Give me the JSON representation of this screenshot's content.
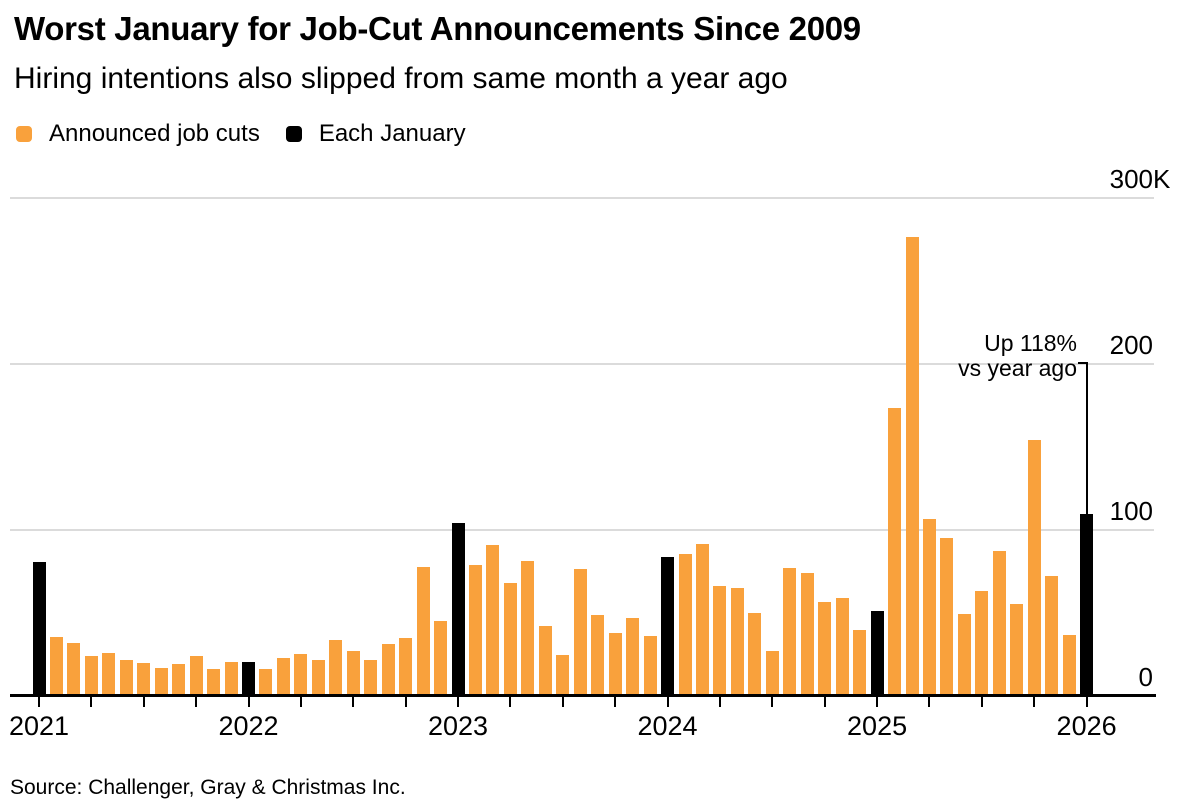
{
  "header": {
    "title": "Worst January for Job-Cut Announcements Since 2009",
    "subtitle": "Hiring intentions also slipped from same month a year ago"
  },
  "annotation": {
    "line1": "Up 118%",
    "line2": "vs year ago",
    "target_index": 60
  },
  "source": {
    "text": "Source: Challenger, Gray & Christmas Inc."
  },
  "colors": {
    "background": "#FFFFFF",
    "gridline": "#DBDBDB",
    "axis": "#000000",
    "text": "#000000"
  },
  "chart_data": {
    "type": "bar",
    "title": "Worst January for Job-Cut Announcements Since 2009",
    "subtitle": "Hiring intentions also slipped from same month a year ago",
    "unit": "thousands of announced job cuts",
    "frequency": "monthly",
    "start_month": "2021-01",
    "ylim": [
      0,
      300
    ],
    "grid": "horizontal",
    "legend_position": "top-left",
    "series": [
      {
        "name": "Announced job cuts",
        "color": "#F9A13C"
      },
      {
        "name": "Each January",
        "color": "#000000"
      }
    ],
    "y_ticks": [
      {
        "value": 0,
        "label": "0"
      },
      {
        "value": 100,
        "label": "100"
      },
      {
        "value": 200,
        "label": "200"
      },
      {
        "value": 300,
        "label": "300",
        "suffix": "K"
      }
    ],
    "x_years": [
      "2021",
      "2022",
      "2023",
      "2024",
      "2025",
      "2026"
    ],
    "x_minor_ticks": "quarterly",
    "january_indices": [
      0,
      12,
      24,
      36,
      48,
      60
    ],
    "values": [
      79.6,
      34.5,
      30.6,
      22.9,
      24.6,
      20.5,
      18.9,
      15.7,
      17.9,
      22.8,
      14.9,
      19.1,
      19.1,
      15.2,
      21.4,
      24.3,
      20.7,
      32.5,
      25.8,
      20.5,
      29.9,
      33.8,
      76.8,
      43.7,
      102.9,
      77.8,
      89.7,
      67.0,
      80.1,
      40.7,
      23.7,
      75.2,
      47.5,
      36.8,
      45.5,
      34.8,
      82.3,
      84.6,
      90.3,
      64.8,
      63.8,
      48.8,
      25.9,
      75.9,
      72.8,
      55.6,
      57.7,
      38.8,
      49.8,
      172.0,
      275.2,
      105.4,
      93.8,
      48.0,
      62.1,
      86.0,
      54.1,
      153.1,
      71.3,
      35.6,
      108.5
    ]
  }
}
